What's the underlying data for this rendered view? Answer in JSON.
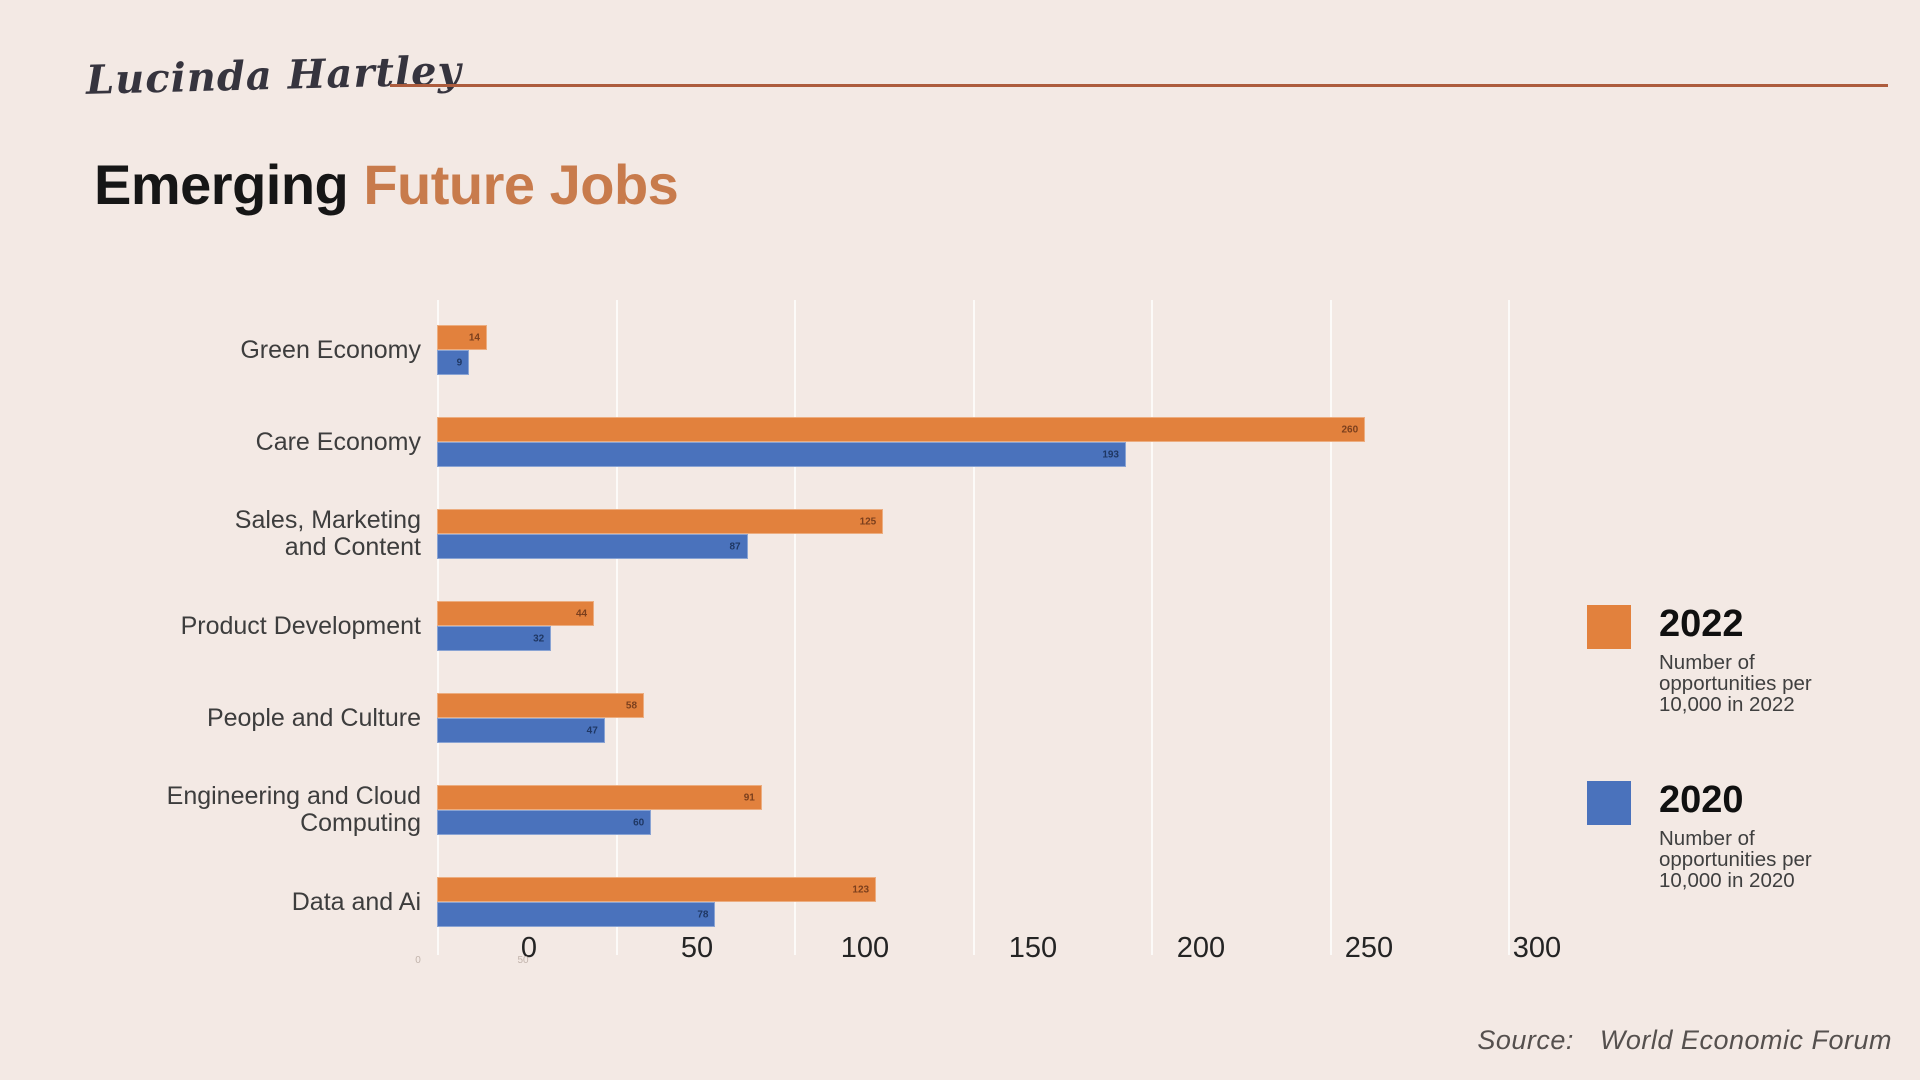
{
  "header": {
    "brand": "Lucinda Hartley",
    "title_black": "Emerging ",
    "title_accent": "Future Jobs"
  },
  "chart_data": {
    "type": "bar",
    "orientation": "horizontal",
    "title": "Emerging Future Jobs",
    "categories": [
      [
        "Green Economy"
      ],
      [
        "Care Economy"
      ],
      [
        "Sales, Marketing",
        "and Content"
      ],
      [
        "Product Development"
      ],
      [
        "People and Culture"
      ],
      [
        "Engineering and Cloud",
        "Computing"
      ],
      [
        "Data and Ai"
      ]
    ],
    "series": [
      {
        "name": "2022",
        "color": "#E2813D",
        "value_label_color": "#7B3F1D",
        "values": [
          14,
          260,
          125,
          44,
          58,
          91,
          123
        ]
      },
      {
        "name": "2020",
        "color": "#4A72BC",
        "value_label_color": "#1F3763",
        "values": [
          9,
          193,
          87,
          32,
          47,
          60,
          78
        ]
      }
    ],
    "x_axis": {
      "ticks": [
        0,
        50,
        100,
        150,
        200,
        250,
        300
      ],
      "remnant_tick_labels": [
        "0",
        "50"
      ]
    },
    "xlim": [
      0,
      300
    ],
    "grid": "vertical-light",
    "value_labels_shown": true,
    "legend_position": "right"
  },
  "legend": {
    "items": [
      {
        "year": "2022",
        "desc": "Number of opportunities per 10,000 in 2022",
        "color": "#E2813D"
      },
      {
        "year": "2020",
        "desc": "Number of opportunities per 10,000 in 2020",
        "color": "#4A72BC"
      }
    ]
  },
  "source": {
    "label": "Source:",
    "value": "World Economic Forum"
  },
  "colors": {
    "background": "#F3E9E4",
    "accent_orange": "#C87B4C",
    "divider_line": "#AD5C3D",
    "bar_2022": "#E2813D",
    "bar_2020": "#4A72BC"
  }
}
